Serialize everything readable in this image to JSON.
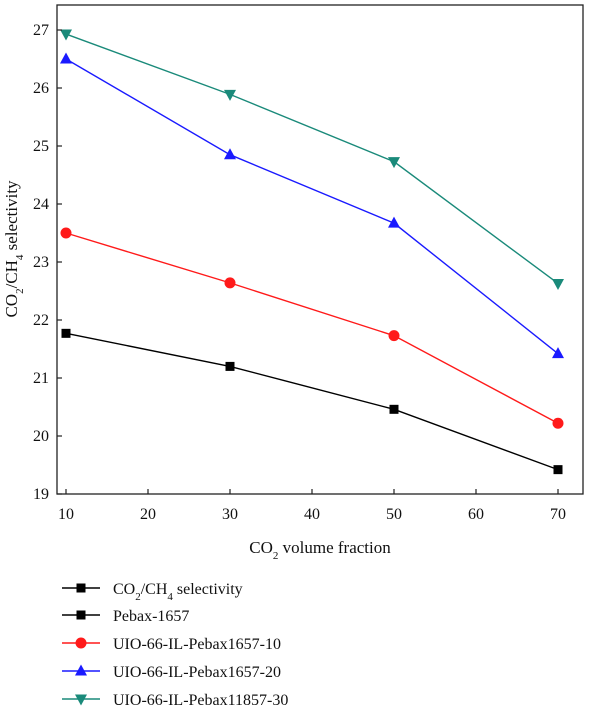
{
  "chart_data": {
    "type": "line",
    "xlabel": {
      "main": "CO",
      "sub": "2",
      "rest": " volume fraction"
    },
    "ylabel": {
      "p1": "CO",
      "s1": "2",
      "p2": "/CH",
      "s2": "4",
      "p3": " selectivity"
    },
    "x": [
      10,
      30,
      50,
      70
    ],
    "xlim": [
      10,
      70
    ],
    "ylim": [
      19,
      27.5
    ],
    "x_ticks": [
      10,
      20,
      30,
      40,
      50,
      60,
      70
    ],
    "y_ticks": [
      19,
      20,
      21,
      22,
      23,
      24,
      25,
      26,
      27
    ],
    "grid": false,
    "legend_position": "bottom",
    "legend_header": {
      "p1": "CO",
      "s1": "2",
      "p2": "/CH",
      "s2": "4",
      "p3": " selectivity",
      "color": "#000000",
      "marker": "square"
    },
    "series": [
      {
        "name": "Pebax-1657",
        "values": [
          21.77,
          21.2,
          20.46,
          19.42
        ],
        "color": "#000000",
        "marker": "square"
      },
      {
        "name": "UIO-66-IL-Pebax1657-10",
        "values": [
          23.5,
          22.64,
          21.73,
          20.22
        ],
        "color": "#ff1a1a",
        "marker": "circle"
      },
      {
        "name": "UIO-66-IL-Pebax1657-20",
        "values": [
          26.5,
          24.85,
          23.67,
          21.42
        ],
        "color": "#1a1aff",
        "marker": "triangle-up"
      },
      {
        "name": "UIO-66-IL-Pebax11857-30",
        "values": [
          26.93,
          25.89,
          24.73,
          22.63
        ],
        "color": "#1a8a7a",
        "marker": "triangle-down"
      }
    ]
  }
}
